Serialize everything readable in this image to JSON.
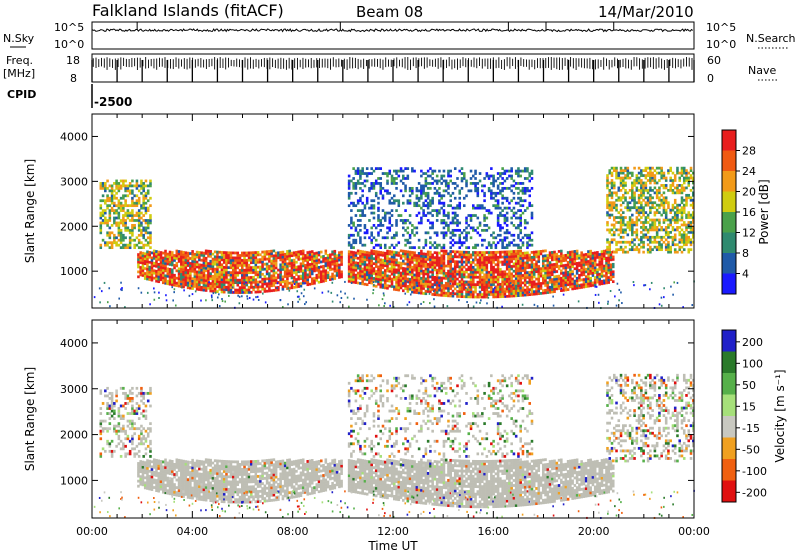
{
  "header": {
    "station": "Falkland Islands (fitACF)",
    "beam": "Beam 08",
    "date": "14/Mar/2010"
  },
  "strip_labels": {
    "nsky": "N.Sky",
    "nsky_ticks": [
      "10^5",
      "10^0"
    ],
    "nsearch": "N.Search",
    "nsearch_ticks": [
      "10^5",
      "10^0"
    ],
    "freq_label_1": "Freq.",
    "freq_label_2": "[MHz]",
    "freq_ticks": [
      "18",
      "8"
    ],
    "nave": "Nave",
    "nave_ticks": [
      "60",
      "0"
    ],
    "cpid_label": "CPID",
    "cpid_value": "-2500"
  },
  "chart_data": [
    {
      "type": "heatmap",
      "name": "power",
      "ylabel": "Slant Range [km]",
      "yticks": [
        "1000",
        "2000",
        "3000",
        "4000"
      ],
      "ylim": [
        180,
        4500
      ],
      "xlim": [
        0,
        24
      ],
      "colorbar": {
        "label": "Power [dB]",
        "ticks": [
          "4",
          "8",
          "12",
          "16",
          "20",
          "24",
          "28"
        ],
        "colors": [
          "#1a1aff",
          "#1f5aa8",
          "#2f8a6f",
          "#4aa14a",
          "#d0cc10",
          "#f29a18",
          "#f05a12",
          "#e81e1e"
        ]
      },
      "echo_regions": [
        {
          "t0": 1.8,
          "t1": 9.9,
          "r0": 500,
          "r1": 1430,
          "level": "high"
        },
        {
          "t0": 10.2,
          "t1": 20.8,
          "r0": 400,
          "r1": 1430,
          "level": "high"
        },
        {
          "t0": 0.3,
          "t1": 2.3,
          "r0": 1500,
          "r1": 3000,
          "level": "mid"
        },
        {
          "t0": 10.2,
          "t1": 17.5,
          "r0": 1500,
          "r1": 3300,
          "level": "low"
        },
        {
          "t0": 20.5,
          "t1": 24,
          "r0": 1400,
          "r1": 3300,
          "level": "mid"
        }
      ]
    },
    {
      "type": "heatmap",
      "name": "velocity",
      "ylabel": "Slant Range [km]",
      "xlabel": "Time UT",
      "xticks": [
        "00:00",
        "04:00",
        "08:00",
        "12:00",
        "16:00",
        "20:00",
        "00:00"
      ],
      "yticks": [
        "1000",
        "2000",
        "3000",
        "4000"
      ],
      "ylim": [
        180,
        4500
      ],
      "xlim": [
        0,
        24
      ],
      "colorbar": {
        "label": "Velocity [m s⁻¹]",
        "ticks": [
          "200",
          "100",
          "50",
          "15",
          "-15",
          "-50",
          "-100",
          "-200"
        ],
        "colors": [
          "#2020c8",
          "#2a7a2a",
          "#56b04a",
          "#a6e07a",
          "#c8c8c0",
          "#f0a020",
          "#f06010",
          "#e01010"
        ]
      },
      "ground_scatter_color": "#bebeb4"
    }
  ]
}
